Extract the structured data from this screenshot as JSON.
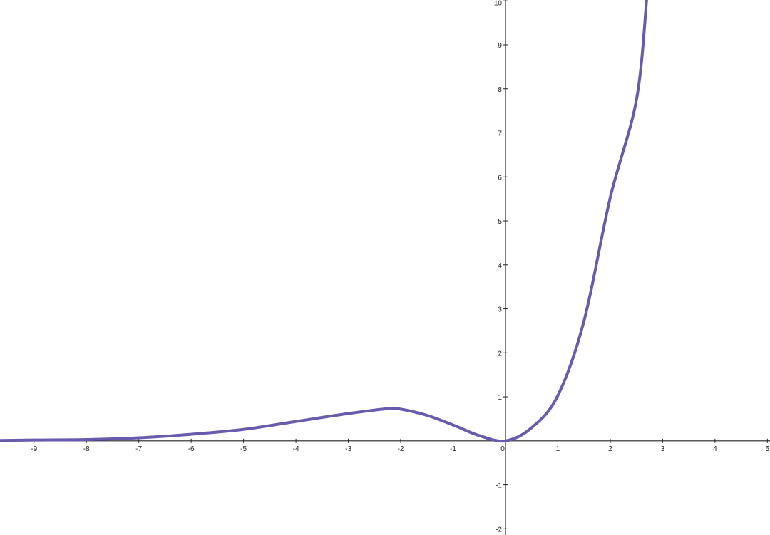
{
  "chart_data": {
    "type": "line",
    "title": "",
    "xlabel": "",
    "ylabel": "",
    "xlim": [
      -9.65,
      5.05
    ],
    "ylim": [
      -2.14,
      10.02
    ],
    "grid": false,
    "x_ticks": [
      "-9",
      "-8",
      "-7",
      "-6",
      "-5",
      "-4",
      "-3",
      "-2",
      "-1",
      "0",
      "1",
      "2",
      "3",
      "4",
      "5"
    ],
    "y_ticks": [
      "-2",
      "-1",
      "1",
      "2",
      "3",
      "4",
      "5",
      "6",
      "7",
      "8",
      "9",
      "10"
    ],
    "series": [
      {
        "color": "#6a5aad",
        "x": [
          -9.65,
          -9,
          -8,
          -7,
          -6,
          -5,
          -4,
          -3,
          -2.25,
          -2,
          -1.5,
          -1,
          -0.5,
          0,
          0.5,
          1,
          1.5,
          2,
          2.5,
          2.7
        ],
        "y": [
          0.01,
          0.02,
          0.03,
          0.07,
          0.15,
          0.26,
          0.44,
          0.62,
          0.73,
          0.72,
          0.58,
          0.36,
          0.12,
          0,
          0.3,
          1.03,
          2.73,
          5.53,
          7.75,
          10.1
        ]
      }
    ]
  }
}
